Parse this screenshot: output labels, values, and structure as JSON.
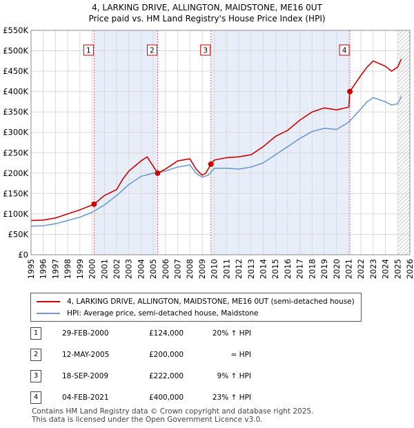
{
  "chart_data": {
    "type": "line",
    "title": "4, LARKING DRIVE, ALLINGTON, MAIDSTONE, ME16 0UT",
    "subtitle": "Price paid vs. HM Land Registry's House Price Index (HPI)",
    "xlim": [
      1995,
      2026
    ],
    "ylim": [
      0,
      550000
    ],
    "x_ticks": [
      1995,
      1996,
      1997,
      1998,
      1999,
      2000,
      2001,
      2002,
      2003,
      2004,
      2005,
      2006,
      2007,
      2008,
      2009,
      2010,
      2011,
      2012,
      2013,
      2014,
      2015,
      2016,
      2017,
      2018,
      2019,
      2020,
      2021,
      2022,
      2023,
      2024,
      2025,
      2026
    ],
    "y_ticks": [
      {
        "value": 0,
        "label": "£0"
      },
      {
        "value": 50000,
        "label": "£50K"
      },
      {
        "value": 100000,
        "label": "£100K"
      },
      {
        "value": 150000,
        "label": "£150K"
      },
      {
        "value": 200000,
        "label": "£200K"
      },
      {
        "value": 250000,
        "label": "£250K"
      },
      {
        "value": 300000,
        "label": "£300K"
      },
      {
        "value": 350000,
        "label": "£350K"
      },
      {
        "value": 400000,
        "label": "£400K"
      },
      {
        "value": 450000,
        "label": "£450K"
      },
      {
        "value": 500000,
        "label": "£500K"
      },
      {
        "value": 550000,
        "label": "£550K"
      }
    ],
    "grid": true,
    "series": [
      {
        "name": "4, LARKING DRIVE, ALLINGTON, MAIDSTONE, ME16 0UT (semi-detached house)",
        "color": "#cc0000",
        "x": [
          1995,
          1996,
          1997,
          1998,
          1999,
          2000.16,
          2001,
          2002,
          2002.5,
          2003,
          2004,
          2004.5,
          2005.36,
          2006,
          2007,
          2008,
          2008.5,
          2009,
          2009.3,
          2009.72,
          2010,
          2011,
          2012,
          2013,
          2014,
          2015,
          2016,
          2017,
          2018,
          2019,
          2020,
          2021.0,
          2021.09,
          2022,
          2022.5,
          2023,
          2024,
          2024.5,
          2025.0,
          2025.3
        ],
        "values": [
          84000,
          85000,
          90000,
          100000,
          110000,
          124000,
          145000,
          160000,
          185000,
          205000,
          230000,
          240000,
          200000,
          210000,
          230000,
          235000,
          210000,
          195000,
          200000,
          222000,
          232000,
          238000,
          240000,
          245000,
          265000,
          290000,
          305000,
          330000,
          350000,
          360000,
          355000,
          362000,
          400000,
          440000,
          460000,
          475000,
          462000,
          450000,
          460000,
          480000
        ]
      },
      {
        "name": "HPI: Average price, semi-detached house, Maidstone",
        "color": "#6a9ad0",
        "x": [
          1995,
          1996,
          1997,
          1998,
          1999,
          2000,
          2001,
          2002,
          2003,
          2004,
          2005,
          2006,
          2007,
          2008,
          2008.5,
          2009,
          2009.5,
          2010,
          2011,
          2012,
          2013,
          2014,
          2015,
          2016,
          2017,
          2018,
          2019,
          2020,
          2021,
          2022,
          2022.5,
          2023,
          2024,
          2024.5,
          2025.0,
          2025.3
        ],
        "values": [
          70000,
          71000,
          76000,
          84000,
          92000,
          104000,
          122000,
          145000,
          172000,
          192000,
          200000,
          205000,
          215000,
          220000,
          200000,
          190000,
          195000,
          212000,
          212000,
          210000,
          215000,
          225000,
          245000,
          265000,
          285000,
          302000,
          310000,
          307000,
          325000,
          358000,
          375000,
          385000,
          375000,
          367000,
          370000,
          388000
        ]
      }
    ],
    "sale_markers": [
      {
        "label": "1",
        "x": 2000.16,
        "value": 124000
      },
      {
        "label": "2",
        "x": 2005.36,
        "value": 200000
      },
      {
        "label": "3",
        "x": 2009.72,
        "value": 222000
      },
      {
        "label": "4",
        "x": 2021.09,
        "value": 400000
      }
    ]
  },
  "legend": {
    "property": "4, LARKING DRIVE, ALLINGTON, MAIDSTONE, ME16 0UT (semi-detached house)",
    "hpi": "HPI: Average price, semi-detached house, Maidstone"
  },
  "sales": [
    {
      "num": "1",
      "date": "29-FEB-2000",
      "price": "£124,000",
      "diff": "20% ↑ HPI"
    },
    {
      "num": "2",
      "date": "12-MAY-2005",
      "price": "£200,000",
      "diff": "≈ HPI"
    },
    {
      "num": "3",
      "date": "18-SEP-2009",
      "price": "£222,000",
      "diff": "9% ↑ HPI"
    },
    {
      "num": "4",
      "date": "04-FEB-2021",
      "price": "£400,000",
      "diff": "23% ↑ HPI"
    }
  ],
  "footer": {
    "line1": "Contains HM Land Registry data © Crown copyright and database right 2025.",
    "line2": "This data is licensed under the Open Government Licence v3.0."
  }
}
